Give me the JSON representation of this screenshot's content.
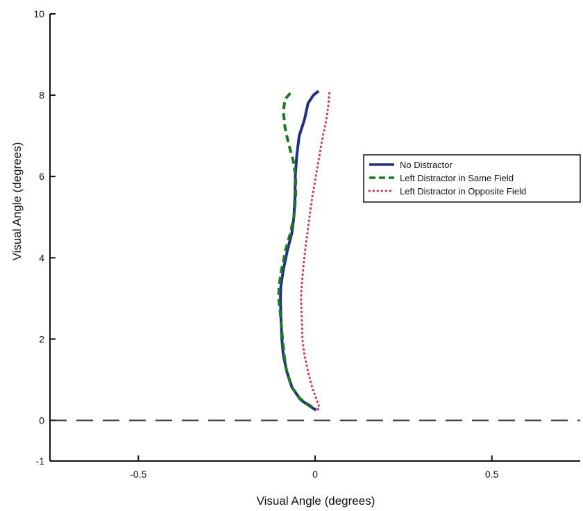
{
  "chart_data": {
    "type": "line",
    "title": "",
    "xlabel": "Visual Angle (degrees)",
    "ylabel": "Visual Angle (degrees)",
    "xlim": [
      -0.75,
      0.75
    ],
    "ylim": [
      -1,
      10
    ],
    "x_ticks": [
      -0.5,
      0,
      0.5
    ],
    "x_tick_labels": [
      "-0.5",
      "0",
      "0.5"
    ],
    "y_ticks": [
      -1,
      0,
      2,
      4,
      6,
      8,
      10
    ],
    "y_tick_labels": [
      "-1",
      "0",
      "2",
      "4",
      "6",
      "8",
      "10"
    ],
    "grid": false,
    "legend_position": "right",
    "reference_line": {
      "y": 0,
      "style": "dashed",
      "color": "#333333"
    },
    "series": [
      {
        "name": "No Distractor",
        "color": "#1f2e8f",
        "style": "solid",
        "points": [
          [
            0.01,
            8.1
          ],
          [
            -0.005,
            8.0
          ],
          [
            -0.02,
            7.8
          ],
          [
            -0.03,
            7.4
          ],
          [
            -0.045,
            7.0
          ],
          [
            -0.052,
            6.5
          ],
          [
            -0.056,
            6.0
          ],
          [
            -0.057,
            5.5
          ],
          [
            -0.06,
            5.0
          ],
          [
            -0.066,
            4.6
          ],
          [
            -0.078,
            4.2
          ],
          [
            -0.09,
            3.7
          ],
          [
            -0.097,
            3.3
          ],
          [
            -0.098,
            3.0
          ],
          [
            -0.097,
            2.6
          ],
          [
            -0.094,
            2.0
          ],
          [
            -0.09,
            1.6
          ],
          [
            -0.08,
            1.2
          ],
          [
            -0.065,
            0.8
          ],
          [
            -0.04,
            0.5
          ],
          [
            -0.015,
            0.35
          ],
          [
            0.003,
            0.25
          ]
        ]
      },
      {
        "name": "Left Distractor in Same Field",
        "color": "#1a7a1a",
        "style": "dashed",
        "points": [
          [
            -0.07,
            8.05
          ],
          [
            -0.085,
            7.9
          ],
          [
            -0.09,
            7.6
          ],
          [
            -0.085,
            7.2
          ],
          [
            -0.075,
            6.8
          ],
          [
            -0.062,
            6.4
          ],
          [
            -0.055,
            6.0
          ],
          [
            -0.055,
            5.5
          ],
          [
            -0.06,
            5.0
          ],
          [
            -0.07,
            4.6
          ],
          [
            -0.083,
            4.2
          ],
          [
            -0.095,
            3.7
          ],
          [
            -0.102,
            3.3
          ],
          [
            -0.103,
            3.0
          ],
          [
            -0.098,
            2.6
          ],
          [
            -0.094,
            2.2
          ],
          [
            -0.09,
            1.8
          ],
          [
            -0.083,
            1.3
          ],
          [
            -0.068,
            0.85
          ],
          [
            -0.045,
            0.55
          ],
          [
            -0.018,
            0.38
          ],
          [
            0.004,
            0.28
          ]
        ]
      },
      {
        "name": "Left Distractor in Opposite Field",
        "color": "#ee2b3b",
        "style": "dotted",
        "points": [
          [
            0.04,
            8.05
          ],
          [
            0.038,
            7.8
          ],
          [
            0.032,
            7.4
          ],
          [
            0.022,
            7.0
          ],
          [
            0.012,
            6.5
          ],
          [
            0.002,
            6.0
          ],
          [
            -0.008,
            5.5
          ],
          [
            -0.016,
            5.0
          ],
          [
            -0.022,
            4.6
          ],
          [
            -0.028,
            4.2
          ],
          [
            -0.033,
            3.8
          ],
          [
            -0.038,
            3.3
          ],
          [
            -0.04,
            3.0
          ],
          [
            -0.038,
            2.6
          ],
          [
            -0.036,
            2.0
          ],
          [
            -0.03,
            1.6
          ],
          [
            -0.02,
            1.2
          ],
          [
            -0.008,
            0.8
          ],
          [
            0.005,
            0.5
          ],
          [
            0.012,
            0.32
          ],
          [
            0.005,
            0.22
          ]
        ]
      }
    ]
  }
}
